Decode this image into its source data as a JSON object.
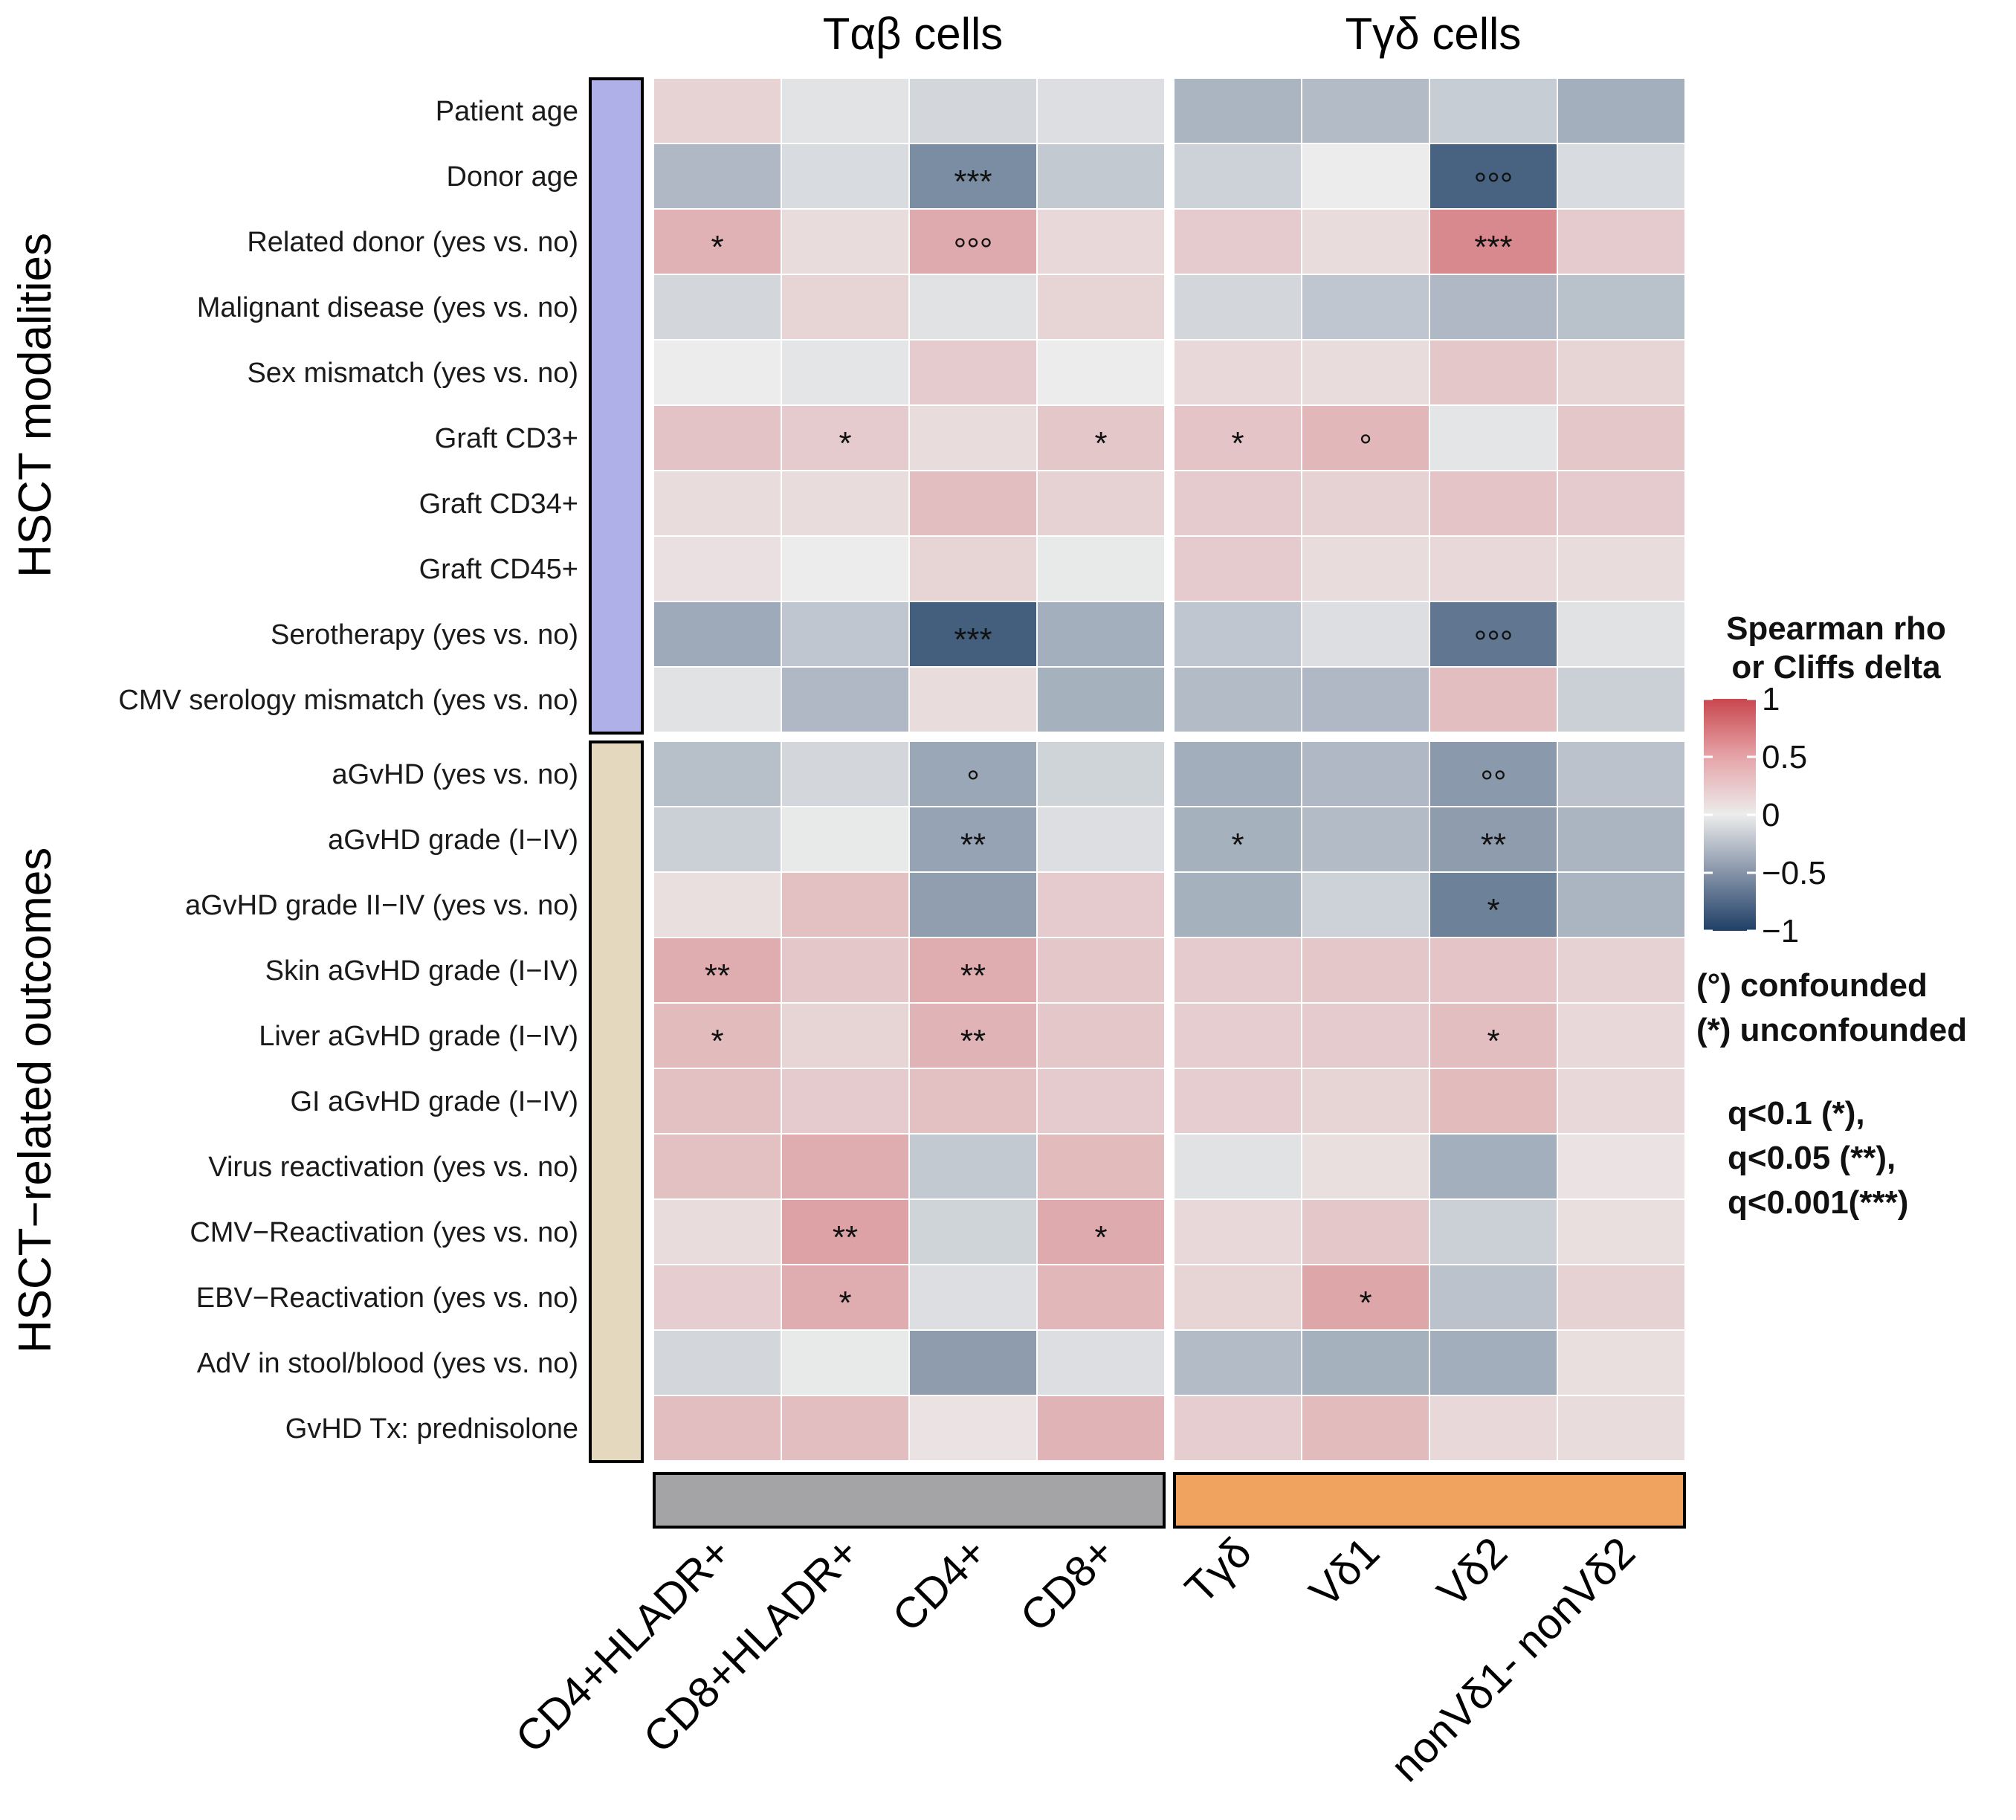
{
  "chart_data": {
    "type": "heatmap",
    "title": "",
    "column_groups": [
      {
        "name": "Tαβ cells",
        "color": "#a4a4a6",
        "columns": [
          "CD4+HLADR+",
          "CD8+HLADR+",
          "CD4+",
          "CD8+"
        ]
      },
      {
        "name": "Tγδ cells",
        "color": "#f0a35e",
        "columns": [
          "Tγδ",
          "Vδ1",
          "Vδ2",
          "nonVδ1- nonVδ2"
        ]
      }
    ],
    "row_groups": [
      {
        "name": "HSCT modalities",
        "color": "#b0b0e8",
        "rows": [
          "Patient age",
          "Donor age",
          "Related donor (yes vs. no)",
          "Malignant disease (yes vs. no)",
          "Sex mismatch (yes vs. no)",
          "Graft CD3+",
          "Graft CD34+",
          "Graft CD45+",
          "Serotherapy (yes vs. no)",
          "CMV serology mismatch (yes vs. no)"
        ]
      },
      {
        "name": "HSCT−related outcomes",
        "color": "#e4d9bf",
        "rows": [
          "aGvHD (yes vs. no)",
          "aGvHD grade (I−IV)",
          "aGvHD grade II−IV (yes vs. no)",
          "Skin aGvHD grade (I−IV)",
          "Liver aGvHD grade (I−IV)",
          "GI aGvHD grade (I−IV)",
          "Virus reactivation (yes vs. no)",
          "CMV−Reactivation (yes vs. no)",
          "EBV−Reactivation (yes vs. no)",
          "AdV in stool/blood (yes vs. no)",
          "GvHD Tx: prednisolone"
        ]
      }
    ],
    "values": [
      [
        0.15,
        -0.05,
        -0.12,
        -0.08,
        -0.32,
        -0.28,
        -0.18,
        -0.35
      ],
      [
        -0.3,
        -0.1,
        -0.55,
        -0.2,
        -0.15,
        0.0,
        -0.8,
        -0.1
      ],
      [
        0.35,
        0.1,
        0.4,
        0.12,
        0.2,
        0.1,
        0.6,
        0.2
      ],
      [
        -0.12,
        0.14,
        -0.06,
        0.14,
        -0.12,
        -0.22,
        -0.3,
        -0.25
      ],
      [
        0.0,
        -0.04,
        0.2,
        0.0,
        0.12,
        0.1,
        0.22,
        0.14
      ],
      [
        0.25,
        0.2,
        0.1,
        0.22,
        0.24,
        0.32,
        -0.04,
        0.22
      ],
      [
        0.1,
        0.1,
        0.28,
        0.16,
        0.2,
        0.16,
        0.24,
        0.2
      ],
      [
        0.07,
        0.0,
        0.14,
        -0.02,
        0.2,
        0.1,
        0.12,
        0.1
      ],
      [
        -0.38,
        -0.22,
        -0.82,
        -0.35,
        -0.22,
        -0.08,
        -0.68,
        -0.06
      ],
      [
        -0.06,
        -0.3,
        0.1,
        -0.34,
        -0.28,
        -0.3,
        0.28,
        -0.16
      ],
      [
        -0.26,
        -0.12,
        -0.4,
        -0.14,
        -0.36,
        -0.3,
        -0.48,
        -0.24
      ],
      [
        -0.16,
        -0.02,
        -0.42,
        -0.08,
        -0.34,
        -0.28,
        -0.46,
        -0.32
      ],
      [
        0.08,
        0.26,
        -0.45,
        0.2,
        -0.34,
        -0.15,
        -0.62,
        -0.32
      ],
      [
        0.38,
        0.22,
        0.38,
        0.22,
        0.2,
        0.22,
        0.24,
        0.16
      ],
      [
        0.3,
        0.14,
        0.34,
        0.22,
        0.18,
        0.2,
        0.28,
        0.12
      ],
      [
        0.26,
        0.2,
        0.26,
        0.2,
        0.18,
        0.14,
        0.3,
        0.12
      ],
      [
        0.26,
        0.38,
        -0.2,
        0.3,
        -0.06,
        0.08,
        -0.35,
        0.06
      ],
      [
        0.1,
        0.45,
        -0.14,
        0.4,
        0.12,
        0.22,
        -0.16,
        0.08
      ],
      [
        0.18,
        0.38,
        -0.08,
        0.32,
        0.14,
        0.42,
        -0.24,
        0.16
      ],
      [
        -0.12,
        -0.02,
        -0.46,
        -0.08,
        -0.28,
        -0.34,
        -0.36,
        0.08
      ],
      [
        0.28,
        0.28,
        0.06,
        0.34,
        0.18,
        0.3,
        0.12,
        0.1
      ]
    ],
    "annotations": [
      [
        "",
        "",
        "",
        "",
        "",
        "",
        "",
        ""
      ],
      [
        "",
        "",
        "***",
        "",
        "",
        "",
        "°°°",
        ""
      ],
      [
        "*",
        "",
        "°°°",
        "",
        "",
        "",
        "***",
        ""
      ],
      [
        "",
        "",
        "",
        "",
        "",
        "",
        "",
        ""
      ],
      [
        "",
        "",
        "",
        "",
        "",
        "",
        "",
        ""
      ],
      [
        "",
        "*",
        "",
        "*",
        "*",
        "°",
        "",
        ""
      ],
      [
        "",
        "",
        "",
        "",
        "",
        "",
        "",
        ""
      ],
      [
        "",
        "",
        "",
        "",
        "",
        "",
        "",
        ""
      ],
      [
        "",
        "",
        "***",
        "",
        "",
        "",
        "°°°",
        ""
      ],
      [
        "",
        "",
        "",
        "",
        "",
        "",
        "",
        ""
      ],
      [
        "",
        "",
        "°",
        "",
        "",
        "",
        "°°",
        ""
      ],
      [
        "",
        "",
        "**",
        "",
        "*",
        "",
        "**",
        ""
      ],
      [
        "",
        "",
        "",
        "",
        "",
        "",
        "*",
        ""
      ],
      [
        "**",
        "",
        "**",
        "",
        "",
        "",
        "",
        ""
      ],
      [
        "*",
        "",
        "**",
        "",
        "",
        "",
        "*",
        ""
      ],
      [
        "",
        "",
        "",
        "",
        "",
        "",
        "",
        ""
      ],
      [
        "",
        "",
        "",
        "",
        "",
        "",
        "",
        ""
      ],
      [
        "",
        "**",
        "",
        "*",
        "",
        "",
        "",
        ""
      ],
      [
        "",
        "*",
        "",
        "",
        "",
        "*",
        "",
        ""
      ],
      [
        "",
        "",
        "",
        "",
        "",
        "",
        "",
        ""
      ],
      [
        "",
        "",
        "",
        "",
        "",
        "",
        "",
        ""
      ]
    ],
    "color_scale": {
      "min": -1,
      "max": 1,
      "low_color": "#1f3f66",
      "mid_color": "#ececec",
      "high_color": "#c9474f",
      "ticks": [
        1,
        0.5,
        0,
        -0.5,
        -1
      ],
      "tick_labels": [
        "1",
        "0.5",
        "0",
        "−0.5",
        "−1"
      ]
    },
    "legend": {
      "title_line1": "Spearman  rho",
      "title_line2": "or Cliffs delta",
      "confounded": "(°) confounded",
      "unconfounded": "(*) unconfounded",
      "q1": "q<0.1 (*),",
      "q2": "q<0.05 (**),",
      "q3": "q<0.001(***)"
    }
  }
}
